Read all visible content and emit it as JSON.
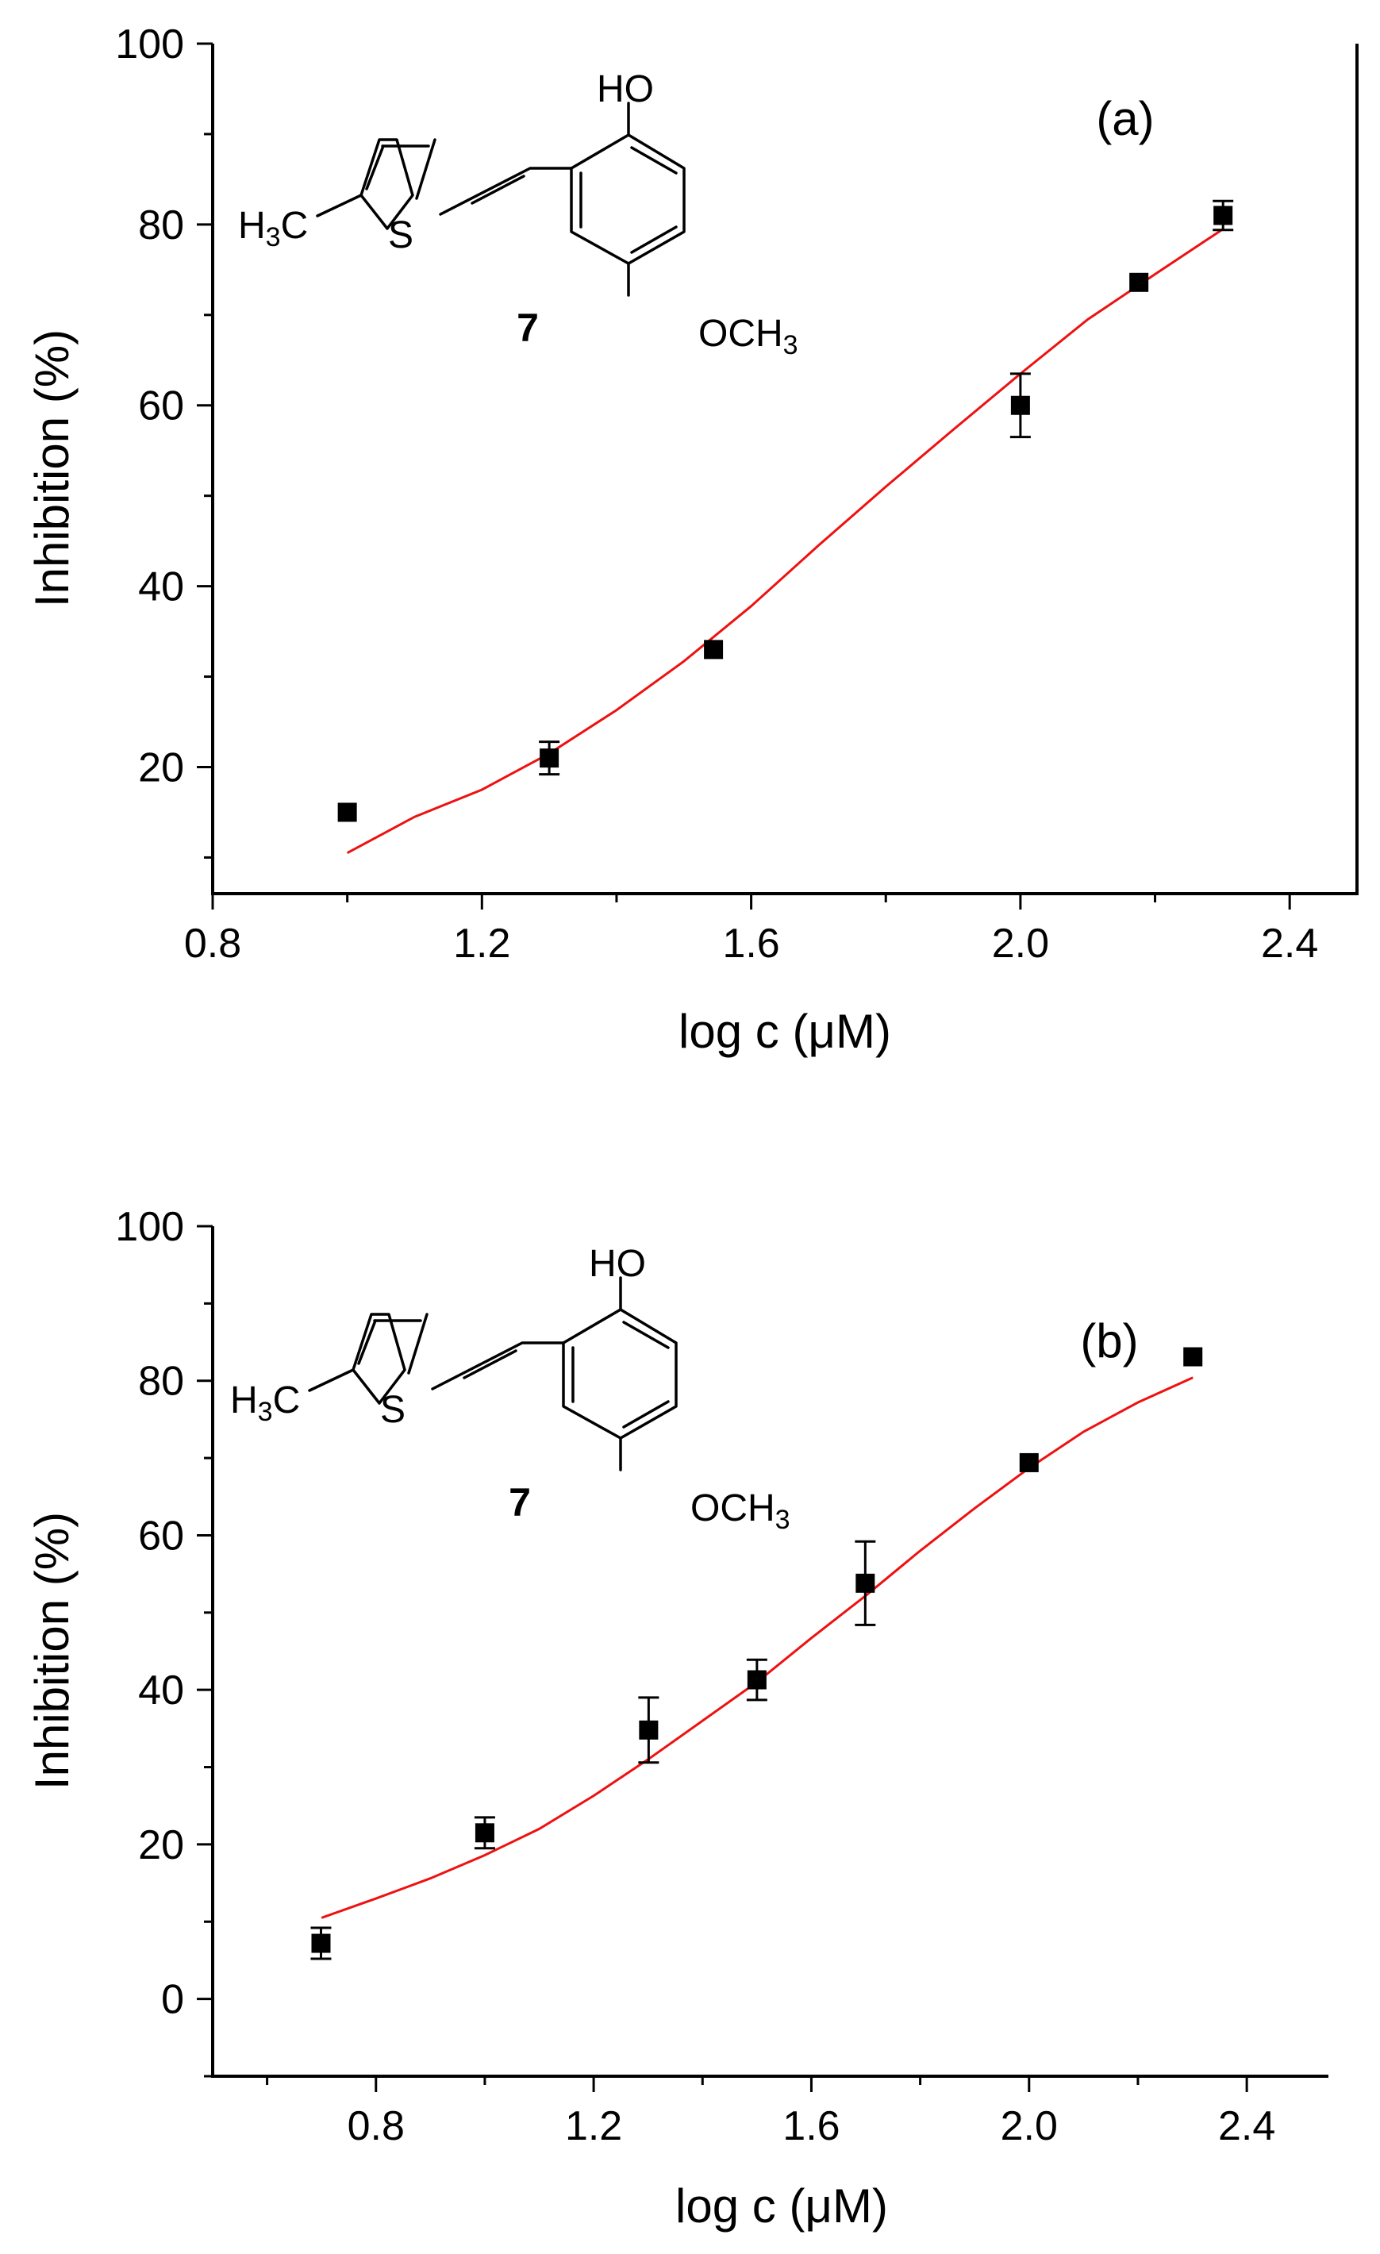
{
  "chart_data": [
    {
      "type": "scatter",
      "panel_label": "(a)",
      "xlabel": "log c (μM)",
      "ylabel": "Inhibition (%)",
      "xlim": [
        0.8,
        2.5
      ],
      "ylim": [
        6,
        100
      ],
      "xticks": [
        "0.8",
        "1.2",
        "1.6",
        "2.0",
        "2.4"
      ],
      "xtick_values": [
        0.8,
        1.2,
        1.6,
        2.0,
        2.4
      ],
      "yticks": [
        "20",
        "40",
        "60",
        "80",
        "100"
      ],
      "ytick_values": [
        20,
        40,
        60,
        80,
        100
      ],
      "series": [
        {
          "kind": "points",
          "x": [
            1.0,
            1.3,
            1.544,
            2.0,
            2.176,
            2.301
          ],
          "y": [
            15,
            21,
            33,
            60,
            73.6,
            81
          ],
          "err": [
            0.6,
            1.8,
            0.5,
            3.5,
            0.5,
            1.6
          ],
          "color": "#000000"
        },
        {
          "kind": "fit",
          "x": [
            1.0,
            1.1,
            1.2,
            1.3,
            1.4,
            1.5,
            1.6,
            1.7,
            1.8,
            1.9,
            2.0,
            2.1,
            2.2,
            2.301
          ],
          "y": [
            10.5,
            14.5,
            17.5,
            21.5,
            26.3,
            31.7,
            37.8,
            44.5,
            51.0,
            57.3,
            63.5,
            69.5,
            74.5,
            79.5
          ],
          "color": "#ee1111"
        }
      ],
      "structure": {
        "methyl": "H3C",
        "sulfur": "S",
        "hydroxyl": "HO",
        "methoxy": "OCH3",
        "compound_number": "7"
      }
    },
    {
      "type": "scatter",
      "panel_label": "(b)",
      "xlabel": "log c (μM)",
      "ylabel": "Inhibition (%)",
      "xlim": [
        0.5,
        2.55
      ],
      "ylim": [
        -10,
        100
      ],
      "xticks": [
        "0.8",
        "1.2",
        "1.6",
        "2.0",
        "2.4"
      ],
      "xtick_values": [
        0.8,
        1.2,
        1.6,
        2.0,
        2.4
      ],
      "yticks": [
        "0",
        "20",
        "40",
        "60",
        "80",
        "100"
      ],
      "ytick_values": [
        0,
        20,
        40,
        60,
        80,
        100
      ],
      "series": [
        {
          "kind": "points",
          "x": [
            0.699,
            1.0,
            1.301,
            1.5,
            1.699,
            2.0,
            2.301
          ],
          "y": [
            7.2,
            21.5,
            34.8,
            41.3,
            53.8,
            69.4,
            83.1
          ],
          "err": [
            2.0,
            2.0,
            4.2,
            2.6,
            5.4,
            0.5,
            0.5
          ],
          "color": "#000000"
        },
        {
          "kind": "fit",
          "x": [
            0.7,
            0.8,
            0.9,
            1.0,
            1.1,
            1.2,
            1.3,
            1.4,
            1.5,
            1.6,
            1.7,
            1.8,
            1.9,
            2.0,
            2.1,
            2.2,
            2.301
          ],
          "y": [
            10.5,
            13.0,
            15.6,
            18.6,
            22.0,
            26.3,
            31.0,
            36.0,
            41.0,
            46.7,
            52.2,
            58.0,
            63.5,
            68.7,
            73.4,
            77.2,
            80.4
          ],
          "color": "#ee1111"
        }
      ],
      "structure": {
        "methyl": "H3C",
        "sulfur": "S",
        "hydroxyl": "HO",
        "methoxy": "OCH3",
        "compound_number": "7"
      }
    }
  ]
}
